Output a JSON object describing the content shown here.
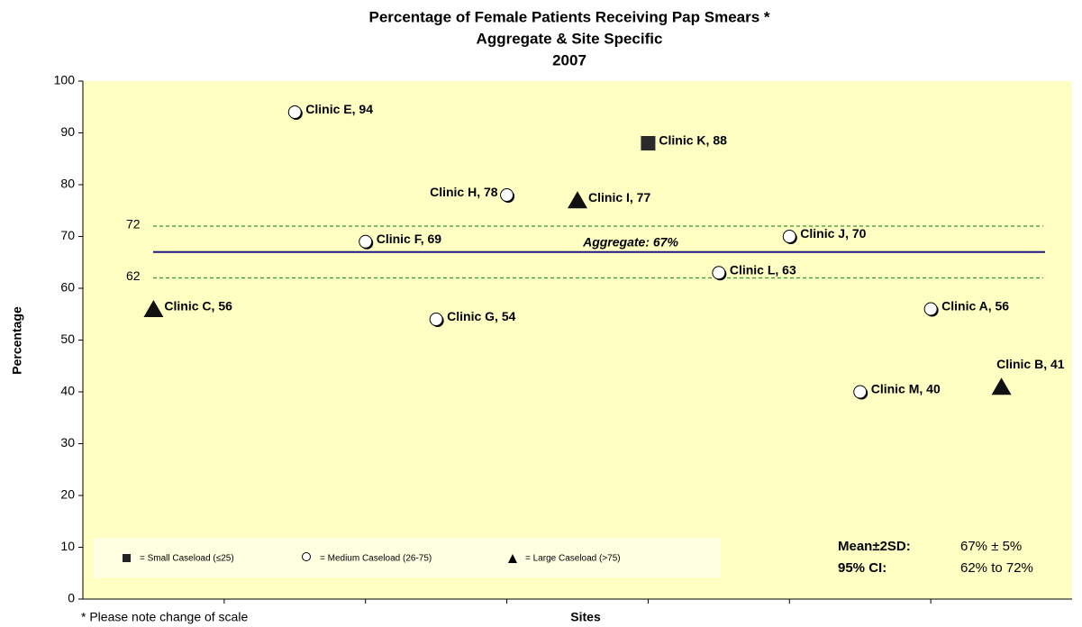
{
  "chart_data": {
    "type": "scatter",
    "title": [
      "Percentage of Female Patients Receiving Pap Smears *",
      "Aggregate & Site Specific",
      "2007"
    ],
    "y_label": "Percentage",
    "x_label": "Sites",
    "footnote": "* Please note change of scale",
    "xlim": [
      0,
      7
    ],
    "xticks": [
      1,
      2,
      3,
      4,
      5,
      6
    ],
    "ylim": [
      0,
      100
    ],
    "yticks": [
      0,
      10,
      20,
      30,
      40,
      50,
      60,
      70,
      80,
      90,
      100
    ],
    "points": [
      {
        "label": "Clinic E, 94",
        "x": 1.5,
        "y": 94,
        "marker": "circle"
      },
      {
        "label": "Clinic K, 88",
        "x": 4.0,
        "y": 88,
        "marker": "square"
      },
      {
        "label": "Clinic H, 78",
        "x": 3.0,
        "y": 78,
        "marker": "circle"
      },
      {
        "label": "Clinic I, 77",
        "x": 3.5,
        "y": 77,
        "marker": "triangle"
      },
      {
        "label": "Clinic F, 69",
        "x": 2.0,
        "y": 69,
        "marker": "circle"
      },
      {
        "label": "Clinic J, 70",
        "x": 5.0,
        "y": 70,
        "marker": "circle"
      },
      {
        "label": "Clinic L, 63",
        "x": 4.5,
        "y": 63,
        "marker": "circle"
      },
      {
        "label": "Clinic C, 56",
        "x": 0.5,
        "y": 56,
        "marker": "triangle"
      },
      {
        "label": "Clinic G, 54",
        "x": 2.5,
        "y": 54,
        "marker": "circle"
      },
      {
        "label": "Clinic A, 56",
        "x": 6.0,
        "y": 56,
        "marker": "circle"
      },
      {
        "label": "Clinic B, 41",
        "x": 6.5,
        "y": 41,
        "marker": "triangle"
      },
      {
        "label": "Clinic M, 40",
        "x": 5.5,
        "y": 40,
        "marker": "circle"
      }
    ],
    "aggregate": {
      "value": 67,
      "label": "Aggregate: 67%",
      "color": "#1a1a80"
    },
    "limits": [
      {
        "value": 72,
        "label": "72"
      },
      {
        "value": 62,
        "label": "62"
      }
    ],
    "limit_color": "#2e9a2e",
    "legend": [
      "= Small Caseload (≤25)",
      "= Medium Caseload (26-75)",
      "= Large Caseload (>75)"
    ],
    "stats": [
      [
        "Mean±2SD:",
        "67% ± 5%"
      ],
      [
        "95% CI:",
        "62% to 72%"
      ]
    ],
    "background": "#ffffc4"
  }
}
